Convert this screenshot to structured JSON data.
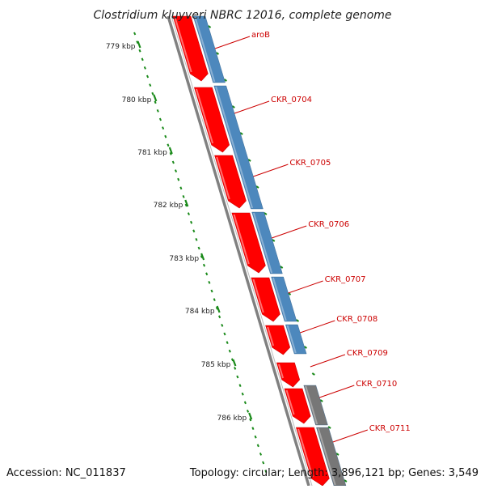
{
  "title": "Clostridium kluyveri NBRC 12016, complete genome",
  "accession": "Accession: NC_011837",
  "summary": "Topology: circular; Length: 3,896,121 bp; Genes: 3,549",
  "colors": {
    "forward_cds": "#ff0000",
    "reverse_cds": "#4d88bd",
    "other_feature": "#777777",
    "backbone": "#808080",
    "scale_ticks": "#1a8a1a",
    "label": "#cc0000"
  },
  "scale_labels": [
    "779 kbp",
    "780 kbp",
    "781 kbp",
    "782 kbp",
    "783 kbp",
    "784 kbp",
    "785 kbp",
    "786 kbp"
  ],
  "gene_labels": [
    "aroB",
    "CKR_0704",
    "CKR_0705",
    "CKR_0706",
    "CKR_0707",
    "CKR_0708",
    "CKR_0709",
    "CKR_0710",
    "CKR_0711"
  ]
}
